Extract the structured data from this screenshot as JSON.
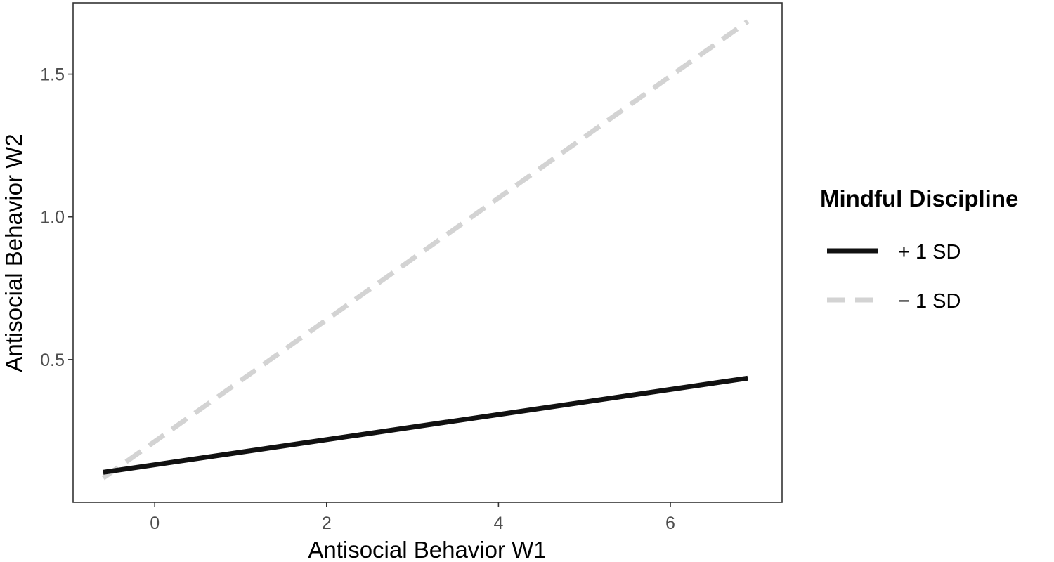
{
  "chart_data": {
    "type": "line",
    "title": "",
    "xlabel": "Antisocial Behavior W1",
    "ylabel": "Antisocial Behavior W2",
    "xlim": [
      -0.95,
      7.3
    ],
    "ylim": [
      0.0,
      1.75
    ],
    "x_ticks": [
      0,
      2,
      4,
      6
    ],
    "x_tick_labels": [
      "0",
      "2",
      "4",
      "6"
    ],
    "y_ticks": [
      0.5,
      1.0,
      1.5
    ],
    "y_tick_labels": [
      "0.5",
      "1.0",
      "1.5"
    ],
    "grid": false,
    "legend": {
      "title": "Mindful Discipline",
      "position": "right"
    },
    "series": [
      {
        "name": "+ 1 SD",
        "style": "solid",
        "color": "#111111",
        "x": [
          -0.6,
          6.9
        ],
        "y": [
          0.105,
          0.435
        ]
      },
      {
        "name": "− 1 SD",
        "style": "dashed",
        "color": "#d3d3d3",
        "x": [
          -0.6,
          6.9
        ],
        "y": [
          0.085,
          1.685
        ]
      }
    ]
  }
}
